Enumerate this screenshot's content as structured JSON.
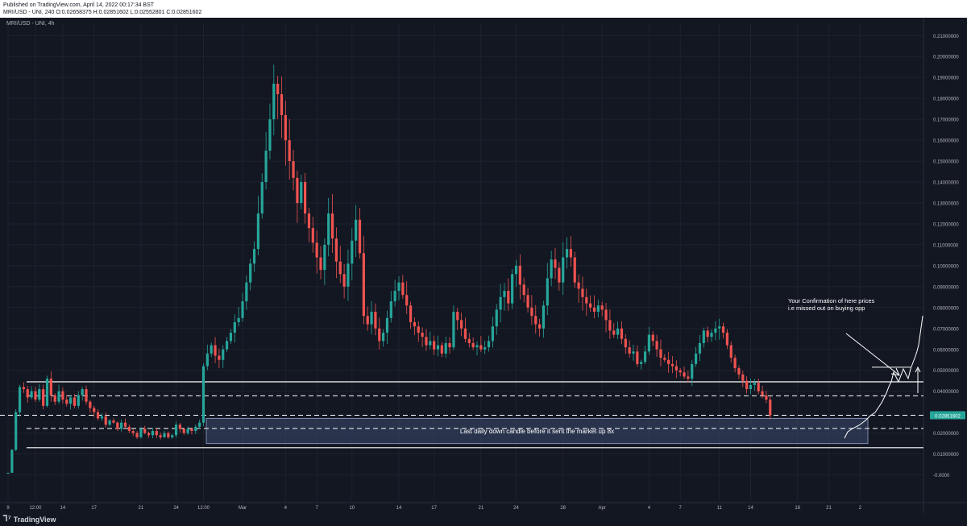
{
  "header": {
    "published": "Published on TradingView.com, April 14, 2022 00:17:34 BST",
    "ohlc": "MRI/USD - UNI, 240  O:0.02658375  H:0.02851602  L:0.02552801  C:0.02851602"
  },
  "symbol_label": "MRI/USD - UNI, 4h",
  "footer": {
    "brand": "TradingView",
    "logo_icon": "tradingview-logo-icon"
  },
  "colors": {
    "background": "#131722",
    "up": "#26a69a",
    "down": "#ef5350",
    "grid": "#1e222d",
    "text": "#b2b5be",
    "annotation": "#ffffff",
    "zone_fill": "#3d4a70",
    "price_tag": "#26a69a"
  },
  "chart_data": {
    "type": "candlestick",
    "title": "MRI/USD - UNI, 4h",
    "y_tick_labels": [
      "0.21000000",
      "0.20000000",
      "0.19000000",
      "0.18000000",
      "0.17000000",
      "0.16000000",
      "0.15000000",
      "0.14000000",
      "0.13000000",
      "0.12000000",
      "0.11000000",
      "0.10000000",
      "0.09000000",
      "0.08000000",
      "0.07000000",
      "0.06000000",
      "0.05000000",
      "0.04000000",
      "0.02851602",
      "0.02000000",
      "0.01000000",
      "-0.0000"
    ],
    "y_ticks": [
      0.21,
      0.2,
      0.19,
      0.18,
      0.17,
      0.16,
      0.15,
      0.14,
      0.13,
      0.12,
      0.11,
      0.1,
      0.09,
      0.08,
      0.07,
      0.06,
      0.05,
      0.04,
      0.02851602,
      0.02,
      0.01,
      0.0
    ],
    "ylim": [
      -0.0125,
      0.2155
    ],
    "x_tick_labels": [
      "9",
      "12:00",
      "14",
      "17",
      "21",
      "24",
      "12:00",
      "Mar",
      "4",
      "7",
      "10",
      "14",
      "17",
      "21",
      "24",
      "28",
      "Apr",
      "4",
      "7",
      "11",
      "14",
      "18",
      "21",
      "2"
    ],
    "x_ticks_index": [
      0,
      7,
      14,
      22,
      34,
      43,
      50,
      60,
      71,
      79,
      88,
      100,
      109,
      121,
      130,
      142,
      152,
      164,
      172,
      182,
      190,
      202,
      210,
      218
    ],
    "last_price": 0.02851602,
    "last_price_label": "0.02851602",
    "grid": true,
    "candles_close": [
      0.001,
      0.012,
      0.03,
      0.042,
      0.041,
      0.037,
      0.04,
      0.036,
      0.041,
      0.033,
      0.046,
      0.038,
      0.035,
      0.04,
      0.036,
      0.034,
      0.037,
      0.033,
      0.038,
      0.041,
      0.035,
      0.032,
      0.03,
      0.027,
      0.028,
      0.024,
      0.026,
      0.025,
      0.022,
      0.025,
      0.023,
      0.021,
      0.02,
      0.018,
      0.022,
      0.02,
      0.019,
      0.021,
      0.019,
      0.018,
      0.02,
      0.018,
      0.019,
      0.024,
      0.022,
      0.02,
      0.022,
      0.021,
      0.023,
      0.025,
      0.052,
      0.058,
      0.062,
      0.057,
      0.055,
      0.06,
      0.064,
      0.068,
      0.073,
      0.075,
      0.083,
      0.092,
      0.101,
      0.108,
      0.125,
      0.14,
      0.155,
      0.17,
      0.187,
      0.182,
      0.172,
      0.16,
      0.15,
      0.142,
      0.13,
      0.14,
      0.125,
      0.118,
      0.111,
      0.104,
      0.098,
      0.11,
      0.125,
      0.113,
      0.102,
      0.096,
      0.09,
      0.101,
      0.112,
      0.122,
      0.106,
      0.076,
      0.072,
      0.078,
      0.07,
      0.064,
      0.068,
      0.075,
      0.083,
      0.088,
      0.092,
      0.086,
      0.081,
      0.073,
      0.071,
      0.068,
      0.066,
      0.062,
      0.064,
      0.06,
      0.062,
      0.058,
      0.063,
      0.061,
      0.078,
      0.074,
      0.07,
      0.065,
      0.063,
      0.061,
      0.062,
      0.06,
      0.061,
      0.064,
      0.071,
      0.079,
      0.085,
      0.088,
      0.082,
      0.096,
      0.1,
      0.091,
      0.086,
      0.08,
      0.076,
      0.072,
      0.07,
      0.081,
      0.094,
      0.103,
      0.099,
      0.092,
      0.104,
      0.108,
      0.104,
      0.092,
      0.089,
      0.085,
      0.082,
      0.08,
      0.078,
      0.081,
      0.079,
      0.074,
      0.069,
      0.067,
      0.07,
      0.065,
      0.061,
      0.058,
      0.059,
      0.053,
      0.054,
      0.059,
      0.067,
      0.064,
      0.06,
      0.056,
      0.055,
      0.053,
      0.052,
      0.05,
      0.049,
      0.047,
      0.046,
      0.053,
      0.058,
      0.063,
      0.069,
      0.066,
      0.068,
      0.07,
      0.071,
      0.068,
      0.062,
      0.056,
      0.051,
      0.048,
      0.045,
      0.041,
      0.043,
      0.044,
      0.04,
      0.038,
      0.036,
      0.0285
    ],
    "level_lines": {
      "solid_upper": 0.0445,
      "solid_lower": 0.013,
      "dashed_1": 0.0378,
      "dashed_2": 0.02851602,
      "dashed_3": 0.0222,
      "future_target": 0.0515
    },
    "zone": {
      "top": 0.027,
      "bottom": 0.015,
      "label": "Last daily down candle before it sent the market up 8x"
    },
    "annotation": {
      "line1": "Your Confirmation of here prices",
      "line2": "i.e missed out on buying opp"
    }
  }
}
